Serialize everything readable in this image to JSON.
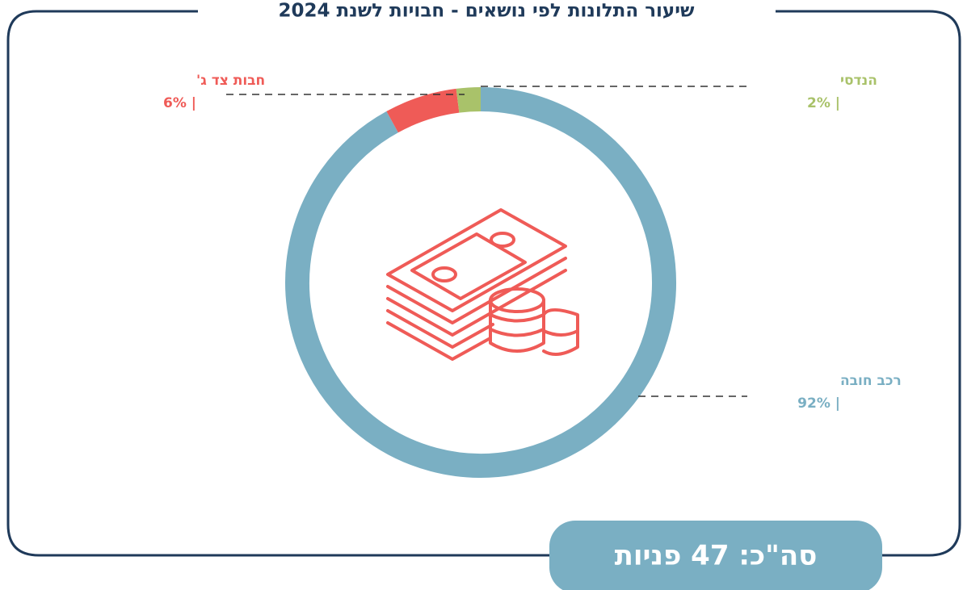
{
  "chart_data": {
    "type": "donut",
    "title": "שיעור התלונות לפי נושאים - חבויות לשנת 2024",
    "categories": [
      "רכב חובה",
      "חבות צד ג'",
      "הנדסי"
    ],
    "values": [
      92,
      6,
      2
    ],
    "value_labels": [
      "92% |",
      "6% |",
      "2% |"
    ],
    "colors": [
      "#7aafc3",
      "#ef5b57",
      "#a9c26a"
    ],
    "total_label": "סה\"כ: 47 פניות"
  }
}
